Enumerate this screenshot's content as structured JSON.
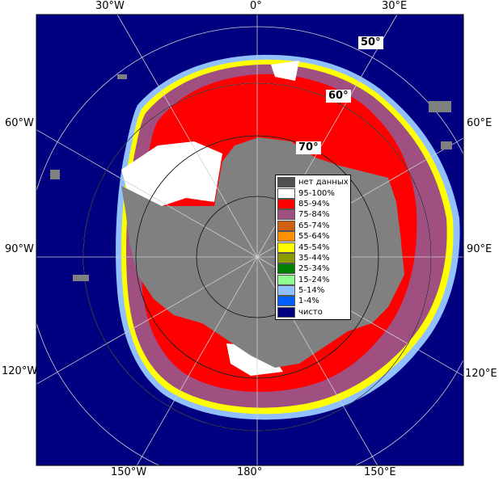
{
  "map": {
    "lon_labels": {
      "top_left": "30°W",
      "top_center": "0°",
      "top_right": "30°E",
      "left_upper": "60°W",
      "left_middle": "90°W",
      "left_lower": "120°W",
      "right_upper": "60°E",
      "right_middle": "90°E",
      "right_lower": "120°E",
      "bottom_left": "150°W",
      "bottom_center": "180°",
      "bottom_right": "150°E"
    },
    "lat_labels": {
      "lat50": "50°",
      "lat60": "60°",
      "lat70": "70°"
    },
    "colors": {
      "ocean": "#000080",
      "land": "#808080",
      "no_data": "#505050",
      "ice_95_100": "#ffffff",
      "ice_85_94": "#ff0000",
      "ice_75_84": "#a05080"
    }
  },
  "legend": {
    "items": [
      {
        "label": "нет данных",
        "color": "#505050"
      },
      {
        "label": "95-100%",
        "color": "#ffffff"
      },
      {
        "label": "85-94%",
        "color": "#ff0000"
      },
      {
        "label": "75-84%",
        "color": "#a05080"
      },
      {
        "label": "65-74%",
        "color": "#d06010"
      },
      {
        "label": "55-64%",
        "color": "#ff9000"
      },
      {
        "label": "45-54%",
        "color": "#ffff00"
      },
      {
        "label": "35-44%",
        "color": "#8a9a00"
      },
      {
        "label": "25-34%",
        "color": "#008000"
      },
      {
        "label": "15-24%",
        "color": "#90ff90"
      },
      {
        "label": "5-14%",
        "color": "#90c0ff"
      },
      {
        "label": "1-4%",
        "color": "#0060ff"
      },
      {
        "label": "чисто",
        "color": "#000080"
      }
    ]
  }
}
